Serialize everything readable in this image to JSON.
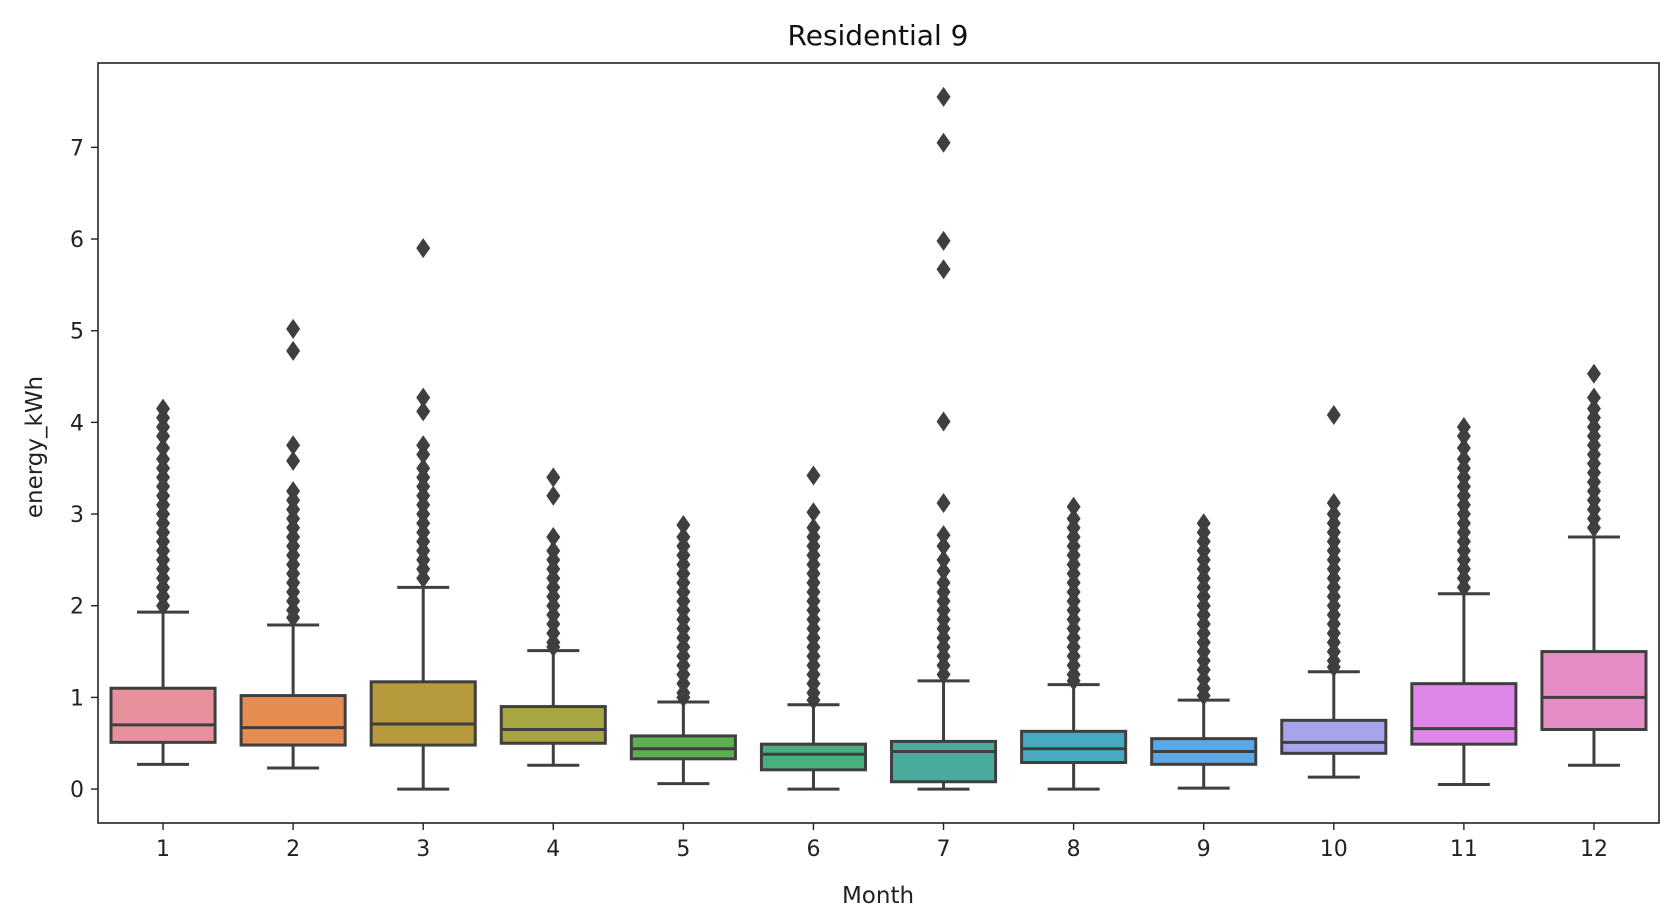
{
  "chart_data": {
    "type": "box",
    "title": "Residential 9",
    "xlabel": "Month",
    "ylabel": "energy_kWh",
    "ylim": [
      -0.37,
      7.92
    ],
    "yticks": [
      0,
      1,
      2,
      3,
      4,
      5,
      6,
      7
    ],
    "grid": false,
    "legend": "none",
    "categories": [
      "1",
      "2",
      "3",
      "4",
      "5",
      "6",
      "7",
      "8",
      "9",
      "10",
      "11",
      "12"
    ],
    "colors": [
      "#e8919d",
      "#e58c52",
      "#b69a3c",
      "#a7a640",
      "#5bb04f",
      "#4aae7f",
      "#49ab9c",
      "#47aac0",
      "#5aa8e6",
      "#a7a4ec",
      "#df87e8",
      "#e58cc4"
    ],
    "boxes": [
      {
        "month": "1",
        "whislo": 0.27,
        "q1": 0.51,
        "med": 0.7,
        "q3": 1.1,
        "whishi": 1.93,
        "fliers": [
          4.15,
          4.05,
          3.95,
          3.85,
          3.72,
          3.6,
          3.5,
          3.4,
          3.3,
          3.2,
          3.1,
          3.0,
          2.9,
          2.8,
          2.7,
          2.6,
          2.5,
          2.4,
          2.3,
          2.2,
          2.1,
          2.0
        ]
      },
      {
        "month": "2",
        "whislo": 0.23,
        "q1": 0.48,
        "med": 0.67,
        "q3": 1.02,
        "whishi": 1.79,
        "fliers": [
          5.02,
          4.78,
          3.75,
          3.58,
          3.25,
          3.15,
          3.05,
          2.95,
          2.85,
          2.75,
          2.65,
          2.55,
          2.45,
          2.35,
          2.25,
          2.15,
          2.05,
          1.95,
          1.87
        ]
      },
      {
        "month": "3",
        "whislo": 0.0,
        "q1": 0.48,
        "med": 0.71,
        "q3": 1.17,
        "whishi": 2.2,
        "fliers": [
          5.9,
          4.27,
          4.12,
          3.75,
          3.65,
          3.5,
          3.4,
          3.3,
          3.2,
          3.1,
          3.0,
          2.9,
          2.8,
          2.7,
          2.6,
          2.5,
          2.4,
          2.3
        ]
      },
      {
        "month": "4",
        "whislo": 0.26,
        "q1": 0.5,
        "med": 0.65,
        "q3": 0.9,
        "whishi": 1.51,
        "fliers": [
          3.4,
          3.2,
          2.75,
          2.6,
          2.5,
          2.4,
          2.3,
          2.2,
          2.1,
          2.0,
          1.9,
          1.8,
          1.7,
          1.6,
          1.55
        ]
      },
      {
        "month": "5",
        "whislo": 0.06,
        "q1": 0.33,
        "med": 0.44,
        "q3": 0.58,
        "whishi": 0.95,
        "fliers": [
          2.88,
          2.75,
          2.65,
          2.55,
          2.45,
          2.35,
          2.25,
          2.15,
          2.05,
          1.95,
          1.85,
          1.75,
          1.65,
          1.55,
          1.45,
          1.35,
          1.25,
          1.15,
          1.05,
          1.0
        ]
      },
      {
        "month": "6",
        "whislo": 0.0,
        "q1": 0.21,
        "med": 0.38,
        "q3": 0.49,
        "whishi": 0.92,
        "fliers": [
          3.42,
          3.02,
          2.85,
          2.75,
          2.65,
          2.55,
          2.45,
          2.35,
          2.25,
          2.15,
          2.05,
          1.95,
          1.85,
          1.75,
          1.65,
          1.55,
          1.45,
          1.35,
          1.25,
          1.15,
          1.05,
          0.97
        ]
      },
      {
        "month": "7",
        "whislo": 0.0,
        "q1": 0.08,
        "med": 0.41,
        "q3": 0.52,
        "whishi": 1.18,
        "fliers": [
          7.55,
          7.05,
          5.98,
          5.67,
          4.01,
          3.12,
          2.77,
          2.65,
          2.5,
          2.38,
          2.25,
          2.15,
          2.05,
          1.95,
          1.85,
          1.75,
          1.65,
          1.55,
          1.45,
          1.35,
          1.25
        ]
      },
      {
        "month": "8",
        "whislo": 0.0,
        "q1": 0.29,
        "med": 0.44,
        "q3": 0.63,
        "whishi": 1.14,
        "fliers": [
          3.08,
          2.95,
          2.85,
          2.75,
          2.65,
          2.55,
          2.45,
          2.35,
          2.25,
          2.15,
          2.05,
          1.95,
          1.85,
          1.75,
          1.65,
          1.55,
          1.45,
          1.35,
          1.25,
          1.18
        ]
      },
      {
        "month": "9",
        "whislo": 0.01,
        "q1": 0.27,
        "med": 0.41,
        "q3": 0.55,
        "whishi": 0.97,
        "fliers": [
          2.9,
          2.8,
          2.7,
          2.6,
          2.5,
          2.4,
          2.3,
          2.2,
          2.1,
          2.0,
          1.9,
          1.8,
          1.7,
          1.6,
          1.5,
          1.4,
          1.3,
          1.2,
          1.1,
          1.02
        ]
      },
      {
        "month": "10",
        "whislo": 0.13,
        "q1": 0.39,
        "med": 0.51,
        "q3": 0.75,
        "whishi": 1.28,
        "fliers": [
          4.08,
          3.12,
          3.0,
          2.9,
          2.8,
          2.7,
          2.6,
          2.5,
          2.4,
          2.3,
          2.2,
          2.1,
          2.0,
          1.9,
          1.8,
          1.7,
          1.6,
          1.5,
          1.4,
          1.33
        ]
      },
      {
        "month": "11",
        "whislo": 0.05,
        "q1": 0.49,
        "med": 0.66,
        "q3": 1.15,
        "whishi": 2.13,
        "fliers": [
          3.95,
          3.85,
          3.72,
          3.6,
          3.5,
          3.4,
          3.3,
          3.2,
          3.1,
          3.0,
          2.9,
          2.8,
          2.7,
          2.6,
          2.5,
          2.4,
          2.3,
          2.2
        ]
      },
      {
        "month": "12",
        "whislo": 0.26,
        "q1": 0.65,
        "med": 1.0,
        "q3": 1.5,
        "whishi": 2.75,
        "fliers": [
          4.53,
          4.27,
          4.15,
          4.05,
          3.95,
          3.85,
          3.75,
          3.65,
          3.55,
          3.45,
          3.35,
          3.25,
          3.15,
          3.05,
          2.95,
          2.85
        ]
      }
    ]
  }
}
